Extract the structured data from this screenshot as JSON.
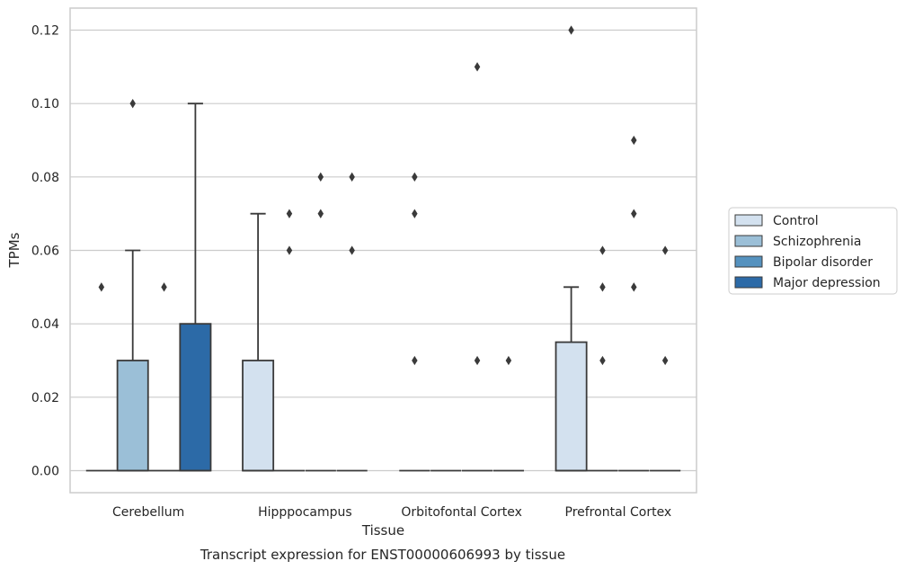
{
  "caption": "Transcript expression for ENST00000606993 by tissue",
  "chart_data": {
    "type": "box",
    "xlabel": "Tissue",
    "ylabel": "TPMs",
    "ylim": [
      -0.006,
      0.126
    ],
    "yticks": [
      0.0,
      0.02,
      0.04,
      0.06,
      0.08,
      0.1,
      0.12
    ],
    "ytick_labels": [
      "0.00",
      "0.02",
      "0.04",
      "0.06",
      "0.08",
      "0.10",
      "0.12"
    ],
    "grid": "horizontal",
    "legend_position": "right",
    "categories": [
      "Cerebellum",
      "Hipppocampus",
      "Orbitofontal Cortex",
      "Prefrontal Cortex"
    ],
    "series": [
      {
        "name": "Control",
        "color": "#d3e1ef",
        "boxes": [
          {
            "q1": 0,
            "median": 0,
            "q3": 0,
            "whisker_low": 0,
            "whisker_high": 0,
            "outliers": [
              0.05
            ]
          },
          {
            "q1": 0,
            "median": 0,
            "q3": 0.03,
            "whisker_low": 0,
            "whisker_high": 0.07,
            "outliers": []
          },
          {
            "q1": 0,
            "median": 0,
            "q3": 0,
            "whisker_low": 0,
            "whisker_high": 0,
            "outliers": [
              0.08,
              0.07,
              0.03
            ]
          },
          {
            "q1": 0,
            "median": 0,
            "q3": 0.035,
            "whisker_low": 0,
            "whisker_high": 0.05,
            "outliers": [
              0.12
            ]
          }
        ]
      },
      {
        "name": "Schizophrenia",
        "color": "#9bbfd7",
        "boxes": [
          {
            "q1": 0,
            "median": 0,
            "q3": 0.03,
            "whisker_low": 0,
            "whisker_high": 0.06,
            "outliers": [
              0.1
            ]
          },
          {
            "q1": 0,
            "median": 0,
            "q3": 0,
            "whisker_low": 0,
            "whisker_high": 0,
            "outliers": [
              0.07,
              0.06
            ]
          },
          {
            "q1": 0,
            "median": 0,
            "q3": 0,
            "whisker_low": 0,
            "whisker_high": 0,
            "outliers": []
          },
          {
            "q1": 0,
            "median": 0,
            "q3": 0,
            "whisker_low": 0,
            "whisker_high": 0,
            "outliers": [
              0.06,
              0.05,
              0.03
            ]
          }
        ]
      },
      {
        "name": "Bipolar disorder",
        "color": "#5592bf",
        "boxes": [
          {
            "q1": 0,
            "median": 0,
            "q3": 0,
            "whisker_low": 0,
            "whisker_high": 0,
            "outliers": [
              0.05
            ]
          },
          {
            "q1": 0,
            "median": 0,
            "q3": 0,
            "whisker_low": 0,
            "whisker_high": 0,
            "outliers": [
              0.08,
              0.07
            ]
          },
          {
            "q1": 0,
            "median": 0,
            "q3": 0,
            "whisker_low": 0,
            "whisker_high": 0,
            "outliers": [
              0.11,
              0.03
            ]
          },
          {
            "q1": 0,
            "median": 0,
            "q3": 0,
            "whisker_low": 0,
            "whisker_high": 0,
            "outliers": [
              0.09,
              0.07,
              0.05
            ]
          }
        ]
      },
      {
        "name": "Major depression",
        "color": "#2c6aa7",
        "boxes": [
          {
            "q1": 0,
            "median": 0,
            "q3": 0.04,
            "whisker_low": 0,
            "whisker_high": 0.1,
            "outliers": []
          },
          {
            "q1": 0,
            "median": 0,
            "q3": 0,
            "whisker_low": 0,
            "whisker_high": 0,
            "outliers": [
              0.08,
              0.06
            ]
          },
          {
            "q1": 0,
            "median": 0,
            "q3": 0,
            "whisker_low": 0,
            "whisker_high": 0,
            "outliers": [
              0.03
            ]
          },
          {
            "q1": 0,
            "median": 0,
            "q3": 0,
            "whisker_low": 0,
            "whisker_high": 0,
            "outliers": [
              0.06,
              0.03
            ]
          }
        ]
      }
    ]
  }
}
